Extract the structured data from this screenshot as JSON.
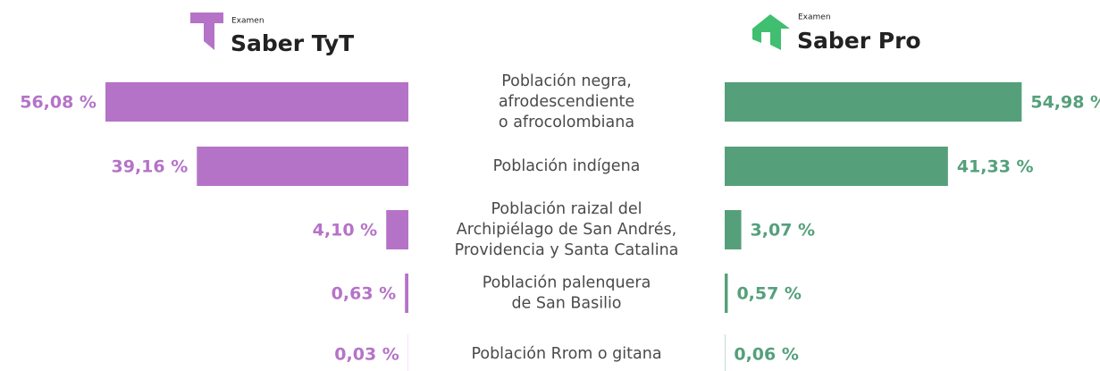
{
  "chart_data": {
    "type": "butterfly-bar",
    "legend_prefix": "Examen",
    "categories": [
      "Población negra,\nafrodescendiente\no afrocolombiana",
      "Población indígena",
      "Población raizal del\nArchipiélago de San Andrés,\nProvidencia y Santa Catalina",
      "Población palenquera\nde San Basilio",
      "Población Rrom o gitana"
    ],
    "xlim": [
      0,
      60
    ],
    "series": [
      {
        "name": "Saber TyT",
        "color": "#b573c8",
        "values": [
          56.08,
          39.16,
          4.1,
          0.63,
          0.03
        ],
        "value_labels": [
          "56,08 %",
          "39,16 %",
          "4,10 %",
          "0,63 %",
          "0,03 %"
        ]
      },
      {
        "name": "Saber Pro",
        "color": "#55a07b",
        "values": [
          54.98,
          41.33,
          3.07,
          0.57,
          0.06
        ],
        "value_labels": [
          "54,98 %",
          "41,33 %",
          "3,07 %",
          "0,57 %",
          "0,06 %"
        ]
      }
    ]
  }
}
